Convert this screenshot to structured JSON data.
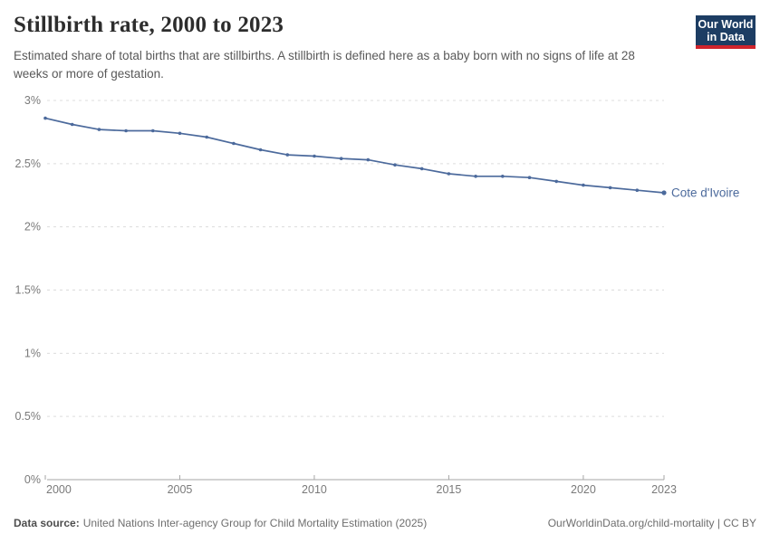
{
  "header": {
    "title": "Stillbirth rate, 2000 to 2023",
    "subtitle": "Estimated share of total births that are stillbirths. A stillbirth is defined here as a baby born with no signs of life at 28 weeks or more of gestation."
  },
  "logo": {
    "line1": "Our World",
    "line2": "in Data"
  },
  "colors": {
    "series_blue": "#4c6a9c",
    "logo_navy": "#1d3d63",
    "logo_red": "#d0242c",
    "gridline": "#dcdcdc",
    "axis": "#a6a6a6",
    "tick_label": "#7a7a7a"
  },
  "chart_data": {
    "type": "line",
    "title": "Stillbirth rate, 2000 to 2023",
    "xlabel": "",
    "ylabel": "",
    "grid": "dashed-horizontal",
    "legend_position": "end-of-line",
    "ylim": [
      0,
      3
    ],
    "x": [
      2000,
      2001,
      2002,
      2003,
      2004,
      2005,
      2006,
      2007,
      2008,
      2009,
      2010,
      2011,
      2012,
      2013,
      2014,
      2015,
      2016,
      2017,
      2018,
      2019,
      2020,
      2021,
      2022,
      2023
    ],
    "series": [
      {
        "name": "Cote d'Ivoire",
        "color": "#4c6a9c",
        "values": [
          2.86,
          2.81,
          2.77,
          2.76,
          2.76,
          2.74,
          2.71,
          2.66,
          2.61,
          2.57,
          2.56,
          2.54,
          2.53,
          2.49,
          2.46,
          2.42,
          2.4,
          2.4,
          2.39,
          2.36,
          2.33,
          2.31,
          2.29,
          2.27
        ]
      }
    ],
    "yticks": [
      {
        "value": 0,
        "label": "0%"
      },
      {
        "value": 0.5,
        "label": "0.5%"
      },
      {
        "value": 1,
        "label": "1%"
      },
      {
        "value": 1.5,
        "label": "1.5%"
      },
      {
        "value": 2,
        "label": "2%"
      },
      {
        "value": 2.5,
        "label": "2.5%"
      },
      {
        "value": 3,
        "label": "3%"
      }
    ],
    "xticks": [
      {
        "value": 2000,
        "label": "2000"
      },
      {
        "value": 2005,
        "label": "2005"
      },
      {
        "value": 2010,
        "label": "2010"
      },
      {
        "value": 2015,
        "label": "2015"
      },
      {
        "value": 2020,
        "label": "2020"
      },
      {
        "value": 2023,
        "label": "2023"
      }
    ]
  },
  "footer": {
    "source_label": "Data source:",
    "source_text": "United Nations Inter-agency Group for Child Mortality Estimation (2025)",
    "attribution": "OurWorldinData.org/child-mortality | CC BY"
  }
}
